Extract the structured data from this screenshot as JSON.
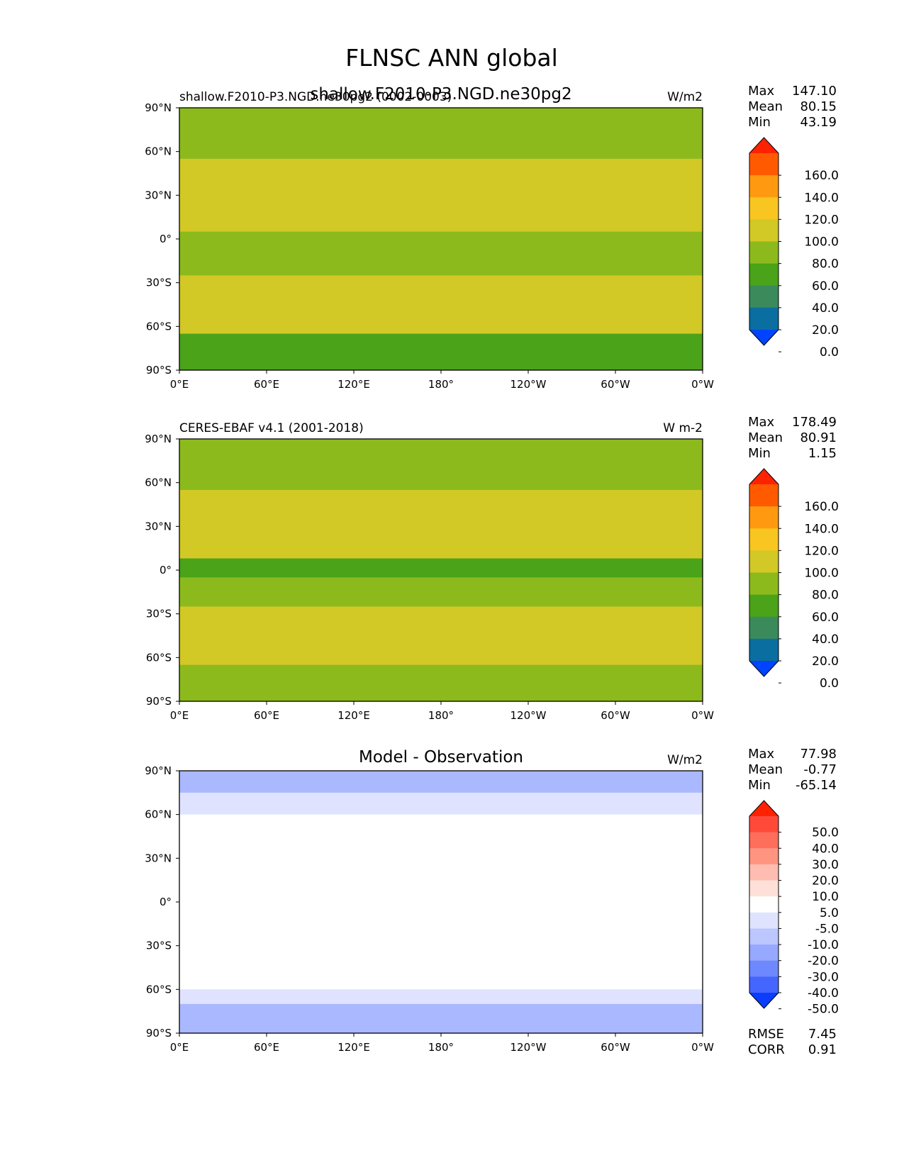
{
  "figure_title": "FLNSC ANN global",
  "chart_data": [
    {
      "type": "heatmap",
      "panel": "test",
      "title_left": "shallow.F2010-P3.NGD.ne30pg2 (0002-0003)",
      "title_center": "shallow.F2010-P3.NGD.ne30pg2",
      "title_right": "W/m2",
      "stats": [
        {
          "label": "Max",
          "value": "147.10"
        },
        {
          "label": "Mean",
          "value": "80.15"
        },
        {
          "label": "Min",
          "value": "43.19"
        }
      ],
      "colorbar": {
        "labels": [
          "160.0",
          "140.0",
          "120.0",
          "100.0",
          "80.0",
          "60.0",
          "40.0",
          "20.0",
          "0.0"
        ],
        "colors": [
          "#ff2200",
          "#ff5a00",
          "#ff9a10",
          "#f9c520",
          "#d2c826",
          "#8cba1c",
          "#4aa318",
          "#3a8a5c",
          "#0a6ea0",
          "#0044ff"
        ],
        "extend": "both"
      },
      "xticks": [
        "0°E",
        "60°E",
        "120°E",
        "180°",
        "120°W",
        "60°W",
        "0°W"
      ],
      "yticks": [
        "90°N",
        "60°N",
        "30°N",
        "0°",
        "30°S",
        "60°S",
        "90°S"
      ],
      "bands": [
        {
          "lat": [
            90,
            70
          ],
          "color": "#8cba1c"
        },
        {
          "lat": [
            70,
            55
          ],
          "color": "#8cba1c"
        },
        {
          "lat": [
            55,
            25
          ],
          "color": "#d2c826"
        },
        {
          "lat": [
            25,
            5
          ],
          "color": "#d2c826"
        },
        {
          "lat": [
            5,
            -5
          ],
          "color": "#8cba1c"
        },
        {
          "lat": [
            -5,
            -25
          ],
          "color": "#8cba1c"
        },
        {
          "lat": [
            -25,
            -65
          ],
          "color": "#d2c826"
        },
        {
          "lat": [
            -65,
            -90
          ],
          "color": "#4aa318"
        }
      ]
    },
    {
      "type": "heatmap",
      "panel": "reference",
      "title_left": "CERES-EBAF v4.1 (2001-2018)",
      "title_center": "",
      "title_right": "W m-2",
      "stats": [
        {
          "label": "Max",
          "value": "178.49"
        },
        {
          "label": "Mean",
          "value": "80.91"
        },
        {
          "label": "Min",
          "value": "1.15"
        }
      ],
      "colorbar": {
        "labels": [
          "160.0",
          "140.0",
          "120.0",
          "100.0",
          "80.0",
          "60.0",
          "40.0",
          "20.0",
          "0.0"
        ],
        "colors": [
          "#ff2200",
          "#ff5a00",
          "#ff9a10",
          "#f9c520",
          "#d2c826",
          "#8cba1c",
          "#4aa318",
          "#3a8a5c",
          "#0a6ea0",
          "#0044ff"
        ],
        "extend": "both"
      },
      "xticks": [
        "0°E",
        "60°E",
        "120°E",
        "180°",
        "120°W",
        "60°W",
        "0°W"
      ],
      "yticks": [
        "90°N",
        "60°N",
        "30°N",
        "0°",
        "30°S",
        "60°S",
        "90°S"
      ],
      "bands": [
        {
          "lat": [
            90,
            70
          ],
          "color": "#8cba1c"
        },
        {
          "lat": [
            70,
            55
          ],
          "color": "#8cba1c"
        },
        {
          "lat": [
            55,
            25
          ],
          "color": "#d2c826"
        },
        {
          "lat": [
            25,
            8
          ],
          "color": "#d2c826"
        },
        {
          "lat": [
            8,
            -5
          ],
          "color": "#4aa318"
        },
        {
          "lat": [
            -5,
            -25
          ],
          "color": "#8cba1c"
        },
        {
          "lat": [
            -25,
            -65
          ],
          "color": "#d2c826"
        },
        {
          "lat": [
            -65,
            -90
          ],
          "color": "#8cba1c"
        }
      ]
    },
    {
      "type": "heatmap",
      "panel": "difference",
      "title_left": "",
      "title_center": "Model - Observation",
      "title_right": "W/m2",
      "stats": [
        {
          "label": "Max",
          "value": "77.98"
        },
        {
          "label": "Mean",
          "value": "-0.77"
        },
        {
          "label": "Min",
          "value": "-65.14"
        }
      ],
      "colorbar": {
        "labels": [
          "50.0",
          "40.0",
          "30.0",
          "20.0",
          "10.0",
          "5.0",
          "-5.0",
          "-10.0",
          "-20.0",
          "-30.0",
          "-40.0",
          "-50.0"
        ],
        "colors": [
          "#ff2200",
          "#ff4a3a",
          "#ff6e5a",
          "#ff9480",
          "#ffbcb0",
          "#ffe0d8",
          "#ffffff",
          "#dfe3ff",
          "#bcc6ff",
          "#96a8ff",
          "#6e88ff",
          "#4466ff",
          "#0b3dff"
        ],
        "extend": "both"
      },
      "xticks": [
        "0°E",
        "60°E",
        "120°E",
        "180°",
        "120°W",
        "60°W",
        "0°W"
      ],
      "yticks": [
        "90°N",
        "60°N",
        "30°N",
        "0°",
        "30°S",
        "60°S",
        "90°S"
      ],
      "bands": [
        {
          "lat": [
            90,
            75
          ],
          "color": "#aab8ff"
        },
        {
          "lat": [
            75,
            60
          ],
          "color": "#dfe3ff"
        },
        {
          "lat": [
            60,
            -60
          ],
          "color": "#ffffff"
        },
        {
          "lat": [
            -60,
            -70
          ],
          "color": "#dfe3ff"
        },
        {
          "lat": [
            -70,
            -90
          ],
          "color": "#aab8ff"
        }
      ],
      "footer_stats": [
        {
          "label": "RMSE",
          "value": "7.45"
        },
        {
          "label": "CORR",
          "value": "0.91"
        }
      ]
    }
  ]
}
